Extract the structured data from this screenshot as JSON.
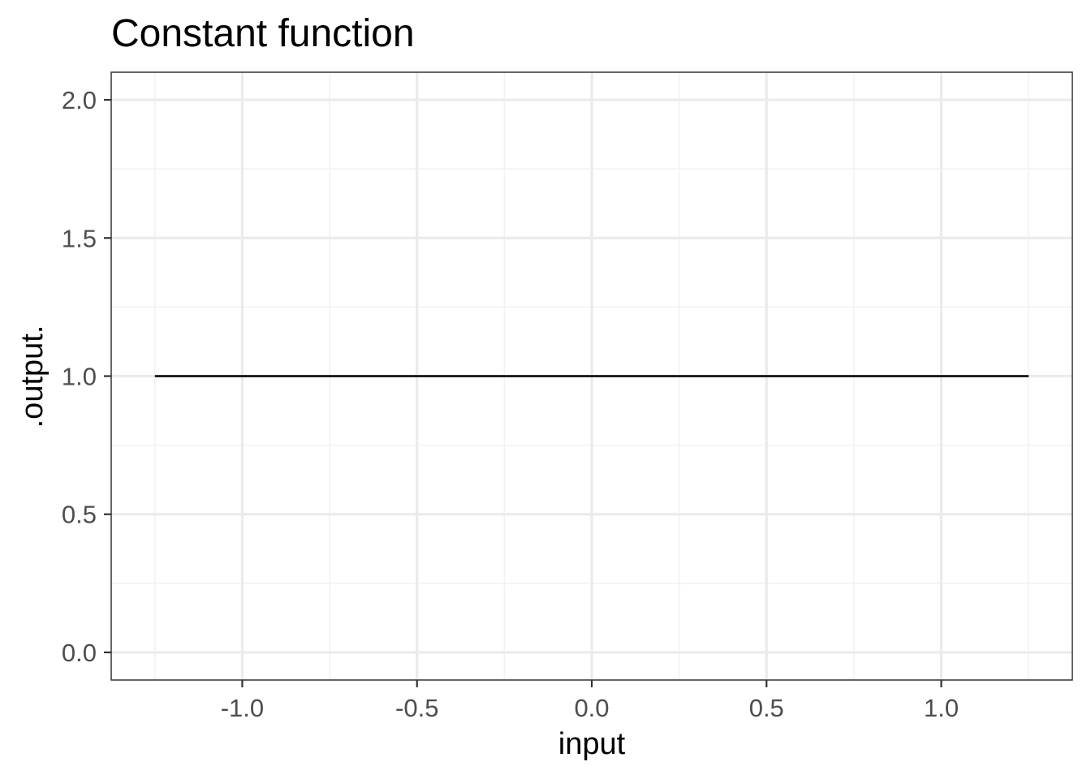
{
  "chart_data": {
    "type": "line",
    "title": "Constant function",
    "xlabel": "input",
    "ylabel": ".output.",
    "xlim": [
      -1.375,
      1.375
    ],
    "ylim": [
      -0.1,
      2.1
    ],
    "x_ticks": [
      -1.0,
      -0.5,
      0.0,
      0.5,
      1.0
    ],
    "x_tick_labels": [
      "-1.0",
      "-0.5",
      "0.0",
      "0.5",
      "1.0"
    ],
    "x_minor_ticks": [
      -1.25,
      -0.75,
      -0.25,
      0.25,
      0.75,
      1.25
    ],
    "y_ticks": [
      0.0,
      0.5,
      1.0,
      1.5,
      2.0
    ],
    "y_tick_labels": [
      "0.0",
      "0.5",
      "1.0",
      "1.5",
      "2.0"
    ],
    "y_minor_ticks": [
      0.25,
      0.75,
      1.25,
      1.75
    ],
    "grid": true,
    "series": [
      {
        "x": [
          -1.25,
          1.25
        ],
        "y": [
          1.0,
          1.0
        ],
        "color": "#000000"
      }
    ],
    "colors": {
      "panel_border": "#333333",
      "grid_major": "#ebebeb",
      "grid_minor": "#f2f2f2",
      "tick": "#333333",
      "tick_label": "#4d4d4d",
      "line": "#000000"
    }
  }
}
